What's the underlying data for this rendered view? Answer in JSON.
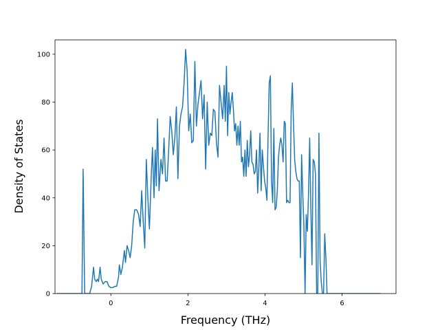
{
  "chart_data": {
    "type": "line",
    "title": "",
    "xlabel": "Frequency (THz)",
    "ylabel": "Density of States",
    "xlim": [
      -1.45,
      7.4
    ],
    "ylim": [
      0,
      106
    ],
    "xticks": [
      0,
      2,
      4,
      6
    ],
    "yticks": [
      0,
      20,
      40,
      60,
      80,
      100
    ],
    "grid": false,
    "legend": "none",
    "series": [
      {
        "color": "#1f77b4",
        "points": [
          [
            -1.4,
            0
          ],
          [
            -0.75,
            0
          ],
          [
            -0.72,
            52
          ],
          [
            -0.68,
            0
          ],
          [
            -0.55,
            0
          ],
          [
            -0.5,
            3
          ],
          [
            -0.45,
            11
          ],
          [
            -0.42,
            6
          ],
          [
            -0.38,
            5
          ],
          [
            -0.35,
            6
          ],
          [
            -0.32,
            5
          ],
          [
            -0.28,
            11
          ],
          [
            -0.25,
            6
          ],
          [
            -0.2,
            4
          ],
          [
            -0.15,
            5
          ],
          [
            -0.1,
            5
          ],
          [
            -0.05,
            3
          ],
          [
            0.0,
            2.5
          ],
          [
            0.05,
            2.5
          ],
          [
            0.1,
            3
          ],
          [
            0.15,
            3
          ],
          [
            0.2,
            7
          ],
          [
            0.22,
            12
          ],
          [
            0.26,
            8
          ],
          [
            0.3,
            11
          ],
          [
            0.35,
            18
          ],
          [
            0.38,
            13
          ],
          [
            0.42,
            20
          ],
          [
            0.46,
            18
          ],
          [
            0.5,
            15
          ],
          [
            0.54,
            20
          ],
          [
            0.58,
            30
          ],
          [
            0.62,
            35
          ],
          [
            0.67,
            35
          ],
          [
            0.72,
            33
          ],
          [
            0.76,
            28
          ],
          [
            0.8,
            43
          ],
          [
            0.84,
            30
          ],
          [
            0.88,
            19
          ],
          [
            0.92,
            56
          ],
          [
            0.96,
            40
          ],
          [
            1.0,
            27
          ],
          [
            1.05,
            50
          ],
          [
            1.08,
            61
          ],
          [
            1.12,
            40
          ],
          [
            1.15,
            60
          ],
          [
            1.18,
            45
          ],
          [
            1.21,
            73
          ],
          [
            1.25,
            43
          ],
          [
            1.3,
            56
          ],
          [
            1.34,
            50
          ],
          [
            1.38,
            65
          ],
          [
            1.42,
            47
          ],
          [
            1.46,
            47
          ],
          [
            1.5,
            60
          ],
          [
            1.54,
            74
          ],
          [
            1.58,
            68
          ],
          [
            1.62,
            58
          ],
          [
            1.66,
            65
          ],
          [
            1.7,
            78
          ],
          [
            1.74,
            48
          ],
          [
            1.78,
            70
          ],
          [
            1.82,
            75
          ],
          [
            1.86,
            78
          ],
          [
            1.9,
            88
          ],
          [
            1.94,
            102
          ],
          [
            1.98,
            93
          ],
          [
            2.02,
            68
          ],
          [
            2.06,
            75
          ],
          [
            2.1,
            63
          ],
          [
            2.14,
            64
          ],
          [
            2.18,
            97
          ],
          [
            2.22,
            70
          ],
          [
            2.26,
            79
          ],
          [
            2.3,
            84
          ],
          [
            2.34,
            89
          ],
          [
            2.38,
            73
          ],
          [
            2.42,
            83
          ],
          [
            2.46,
            52
          ],
          [
            2.5,
            80
          ],
          [
            2.54,
            62
          ],
          [
            2.58,
            67
          ],
          [
            2.62,
            66
          ],
          [
            2.66,
            77
          ],
          [
            2.7,
            76
          ],
          [
            2.74,
            63
          ],
          [
            2.78,
            57
          ],
          [
            2.82,
            87
          ],
          [
            2.86,
            80
          ],
          [
            2.9,
            73
          ],
          [
            2.94,
            87
          ],
          [
            2.97,
            72
          ],
          [
            3.0,
            95
          ],
          [
            3.03,
            66
          ],
          [
            3.06,
            84
          ],
          [
            3.09,
            75
          ],
          [
            3.12,
            80
          ],
          [
            3.15,
            84
          ],
          [
            3.18,
            77
          ],
          [
            3.21,
            68
          ],
          [
            3.24,
            71
          ],
          [
            3.27,
            62
          ],
          [
            3.3,
            70
          ],
          [
            3.33,
            62
          ],
          [
            3.36,
            72
          ],
          [
            3.39,
            55
          ],
          [
            3.42,
            57
          ],
          [
            3.45,
            49
          ],
          [
            3.48,
            60
          ],
          [
            3.51,
            49
          ],
          [
            3.54,
            64
          ],
          [
            3.57,
            53
          ],
          [
            3.6,
            58
          ],
          [
            3.63,
            68
          ],
          [
            3.66,
            55
          ],
          [
            3.69,
            54
          ],
          [
            3.72,
            50
          ],
          [
            3.75,
            51
          ],
          [
            3.78,
            60
          ],
          [
            3.81,
            42
          ],
          [
            3.84,
            53
          ],
          [
            3.87,
            67
          ],
          [
            3.9,
            43
          ],
          [
            3.93,
            60
          ],
          [
            3.96,
            53
          ],
          [
            3.99,
            47
          ],
          [
            4.02,
            44
          ],
          [
            4.05,
            39
          ],
          [
            4.08,
            66
          ],
          [
            4.11,
            88
          ],
          [
            4.14,
            91
          ],
          [
            4.17,
            47
          ],
          [
            4.2,
            38
          ],
          [
            4.23,
            69
          ],
          [
            4.26,
            35
          ],
          [
            4.29,
            36
          ],
          [
            4.32,
            43
          ],
          [
            4.35,
            57
          ],
          [
            4.38,
            62
          ],
          [
            4.41,
            65
          ],
          [
            4.44,
            62
          ],
          [
            4.47,
            55
          ],
          [
            4.5,
            72
          ],
          [
            4.53,
            71
          ],
          [
            4.56,
            38
          ],
          [
            4.59,
            39
          ],
          [
            4.62,
            38
          ],
          [
            4.65,
            38
          ],
          [
            4.68,
            77
          ],
          [
            4.71,
            88
          ],
          [
            4.74,
            71
          ],
          [
            4.77,
            56
          ],
          [
            4.8,
            51
          ],
          [
            4.83,
            48
          ],
          [
            4.86,
            47
          ],
          [
            4.89,
            47
          ],
          [
            4.92,
            15
          ],
          [
            4.95,
            58
          ],
          [
            4.98,
            42
          ],
          [
            5.01,
            28
          ],
          [
            5.04,
            0
          ],
          [
            5.07,
            33
          ],
          [
            5.1,
            26
          ],
          [
            5.13,
            42
          ],
          [
            5.16,
            65
          ],
          [
            5.19,
            36
          ],
          [
            5.22,
            12
          ],
          [
            5.25,
            56
          ],
          [
            5.28,
            55
          ],
          [
            5.31,
            50
          ],
          [
            5.34,
            0
          ],
          [
            5.37,
            0
          ],
          [
            5.4,
            67
          ],
          [
            5.43,
            14
          ],
          [
            5.46,
            5
          ],
          [
            5.49,
            0
          ],
          [
            5.52,
            0
          ],
          [
            5.55,
            25
          ],
          [
            5.58,
            15
          ],
          [
            5.61,
            0
          ],
          [
            5.64,
            0
          ],
          [
            5.7,
            0
          ],
          [
            6.0,
            0
          ],
          [
            7.0,
            0
          ]
        ]
      }
    ]
  }
}
